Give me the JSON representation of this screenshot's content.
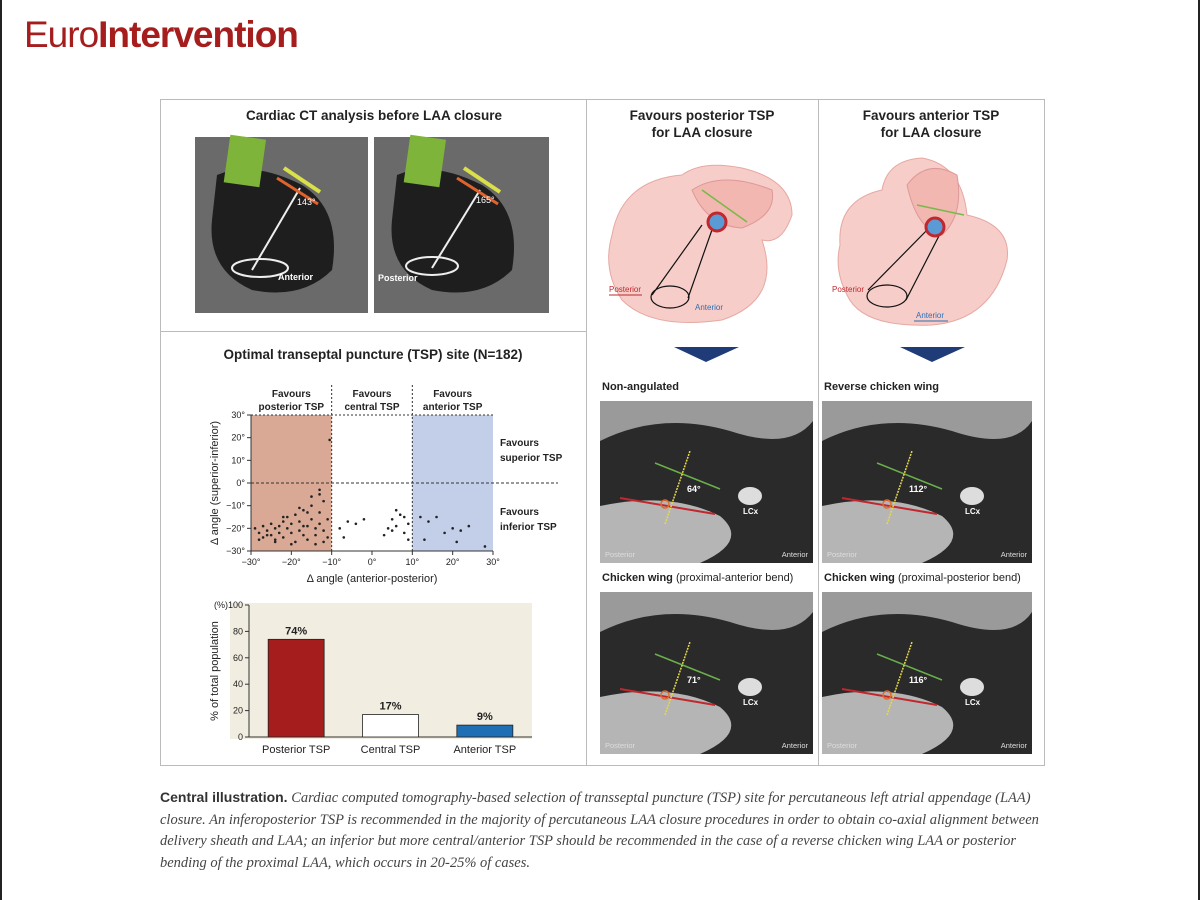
{
  "header": {
    "brand_light": "Euro",
    "brand_bold": "Intervention"
  },
  "ct_panel": {
    "title": "Cardiac CT analysis before LAA closure",
    "images": [
      {
        "angle": "143°",
        "label": "Anterior"
      },
      {
        "angle": "165°",
        "label": "Posterior"
      }
    ]
  },
  "tsp_panel": {
    "title": "Optimal transeptal puncture (TSP) site (N=182)"
  },
  "chart_data": [
    {
      "type": "scatter",
      "xlabel": "Δ angle (anterior-posterior)",
      "ylabel": "Δ angle (superior-inferior)",
      "xlim": [
        -30,
        30
      ],
      "ylim": [
        -30,
        30
      ],
      "xticks": [
        {
          "value": -30,
          "label": "−30°"
        },
        {
          "value": -20,
          "label": "−20°"
        },
        {
          "value": -10,
          "label": "−10°"
        },
        {
          "value": 0,
          "label": "0°"
        },
        {
          "value": 10,
          "label": "10°"
        },
        {
          "value": 20,
          "label": "20°"
        },
        {
          "value": 30,
          "label": "30°"
        }
      ],
      "yticks": [
        {
          "value": -30,
          "label": "−30°"
        },
        {
          "value": -20,
          "label": "−20°"
        },
        {
          "value": -10,
          "label": "−10°"
        },
        {
          "value": 0,
          "label": "0°"
        },
        {
          "value": 10,
          "label": "10°"
        },
        {
          "value": 20,
          "label": "20°"
        },
        {
          "value": 30,
          "label": "30°"
        }
      ],
      "regions": [
        {
          "lines": [
            "Favours",
            "posterior TSP"
          ],
          "from": -30,
          "to": -10,
          "color": "#d9a996"
        },
        {
          "lines": [
            "Favours",
            "central TSP"
          ],
          "from": -10,
          "to": 10,
          "color": "#ffffff"
        },
        {
          "lines": [
            "Favours",
            "anterior TSP"
          ],
          "from": 10,
          "to": 30,
          "color": "#c3cfe8"
        }
      ],
      "annotations": [
        {
          "lines": [
            "Favours",
            "superior TSP"
          ]
        },
        {
          "lines": [
            "Favours",
            "inferior TSP"
          ]
        }
      ],
      "color": "#222222",
      "x": [
        -29,
        -28,
        -27,
        -27,
        -26,
        -25,
        -25,
        -24,
        -24,
        -23,
        -23,
        -22,
        -22,
        -21,
        -21,
        -20,
        -20,
        -19,
        -19,
        -18,
        -18,
        -17,
        -17,
        -16,
        -16,
        -15,
        -15,
        -14,
        -14,
        -13,
        -13,
        -12,
        -12,
        -11,
        -11,
        -12,
        -14,
        -16,
        -18,
        -20,
        -22,
        -24,
        -26,
        -28,
        -13,
        -15,
        -17,
        -13,
        -10.5,
        -8,
        -6,
        -4,
        -2,
        -7,
        5,
        6,
        7,
        8,
        9,
        3,
        4,
        8,
        9,
        6,
        5,
        12,
        14,
        16,
        18,
        20,
        22,
        24,
        13,
        21,
        28
      ],
      "values": [
        -20,
        -22,
        -19,
        -24,
        -21,
        -18,
        -23,
        -20,
        -25,
        -19,
        -22,
        -17,
        -24,
        -20,
        -15,
        -22,
        -18,
        -26,
        -14,
        -21,
        -17,
        -23,
        -12,
        -19,
        -25,
        -16,
        -10,
        -20,
        -23,
        -13,
        -18,
        -8,
        -21,
        -16,
        -24,
        -26,
        -27,
        -13,
        -11,
        -27,
        -15,
        -26,
        -23,
        -25,
        -5,
        -6,
        -19,
        -3,
        19,
        -20,
        -17,
        -18,
        -16,
        -24,
        -16,
        -19,
        -14,
        -22,
        -18,
        -23,
        -20,
        -15,
        -25,
        -12,
        -21,
        -15,
        -17,
        -15,
        -22,
        -20,
        -21,
        -19,
        -25,
        -26,
        -28
      ]
    },
    {
      "type": "bar",
      "ylabel": "% of total population",
      "unit": "(%)",
      "ylim": [
        0,
        100
      ],
      "yticks": [
        0,
        20,
        40,
        60,
        80,
        100
      ],
      "categories": [
        "Posterior TSP",
        "Central TSP",
        "Anterior TSP"
      ],
      "values": [
        74,
        17,
        9
      ],
      "value_labels": [
        "74%",
        "17%",
        "9%"
      ],
      "colors": [
        "#a51d1d",
        "#ffffff",
        "#1f6fb5"
      ],
      "background": "#f1ede0"
    }
  ],
  "posterior_column": {
    "title": [
      "Favours posterior TSP",
      "for LAA closure"
    ],
    "diagram_labels": {
      "posterior": "Posterior",
      "anterior": "Anterior"
    },
    "scans": [
      {
        "heading": "Non-angulated",
        "note": "",
        "angle": "64°",
        "vessel": "LCx",
        "left": "Posterior",
        "right": "Anterior"
      },
      {
        "heading": "Chicken wing",
        "note": "(proximal-anterior bend)",
        "angle": "71°",
        "vessel": "LCx",
        "left": "Posterior",
        "right": "Anterior"
      }
    ]
  },
  "anterior_column": {
    "title": [
      "Favours anterior TSP",
      "for LAA closure"
    ],
    "diagram_labels": {
      "posterior": "Posterior",
      "anterior": "Anterior"
    },
    "scans": [
      {
        "heading": "Reverse chicken wing",
        "note": "",
        "angle": "112°",
        "vessel": "LCx",
        "left": "Posterior",
        "right": "Anterior"
      },
      {
        "heading": "Chicken wing",
        "note": "(proximal-posterior bend)",
        "angle": "116°",
        "vessel": "LCx",
        "left": "Posterior",
        "right": "Anterior"
      }
    ]
  },
  "caption": {
    "lead": "Central illustration.",
    "text": "Cardiac computed tomography-based selection of transseptal puncture (TSP) site for percutaneous left atrial appendage (LAA) closure. An inferoposterior TSP is recommended in the majority of percutaneous LAA closure procedures in order to obtain co-axial alignment between delivery sheath and LAA; an inferior but more central/anterior TSP should be recommended in the case of a reverse chicken wing LAA or posterior bending of the proximal LAA, which occurs in 20-25% of cases."
  }
}
